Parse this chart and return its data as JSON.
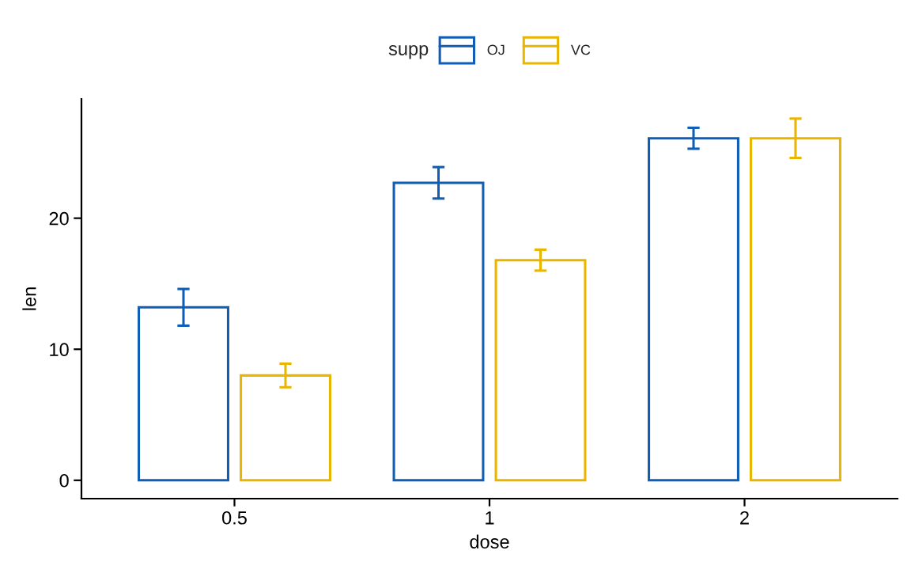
{
  "chart_data": {
    "type": "bar",
    "xlabel": "dose",
    "ylabel": "len",
    "legend_title": "supp",
    "categories": [
      "0.5",
      "1",
      "2"
    ],
    "series": [
      {
        "name": "OJ",
        "color": "#0F5DB5",
        "values": [
          13.2,
          22.7,
          26.1
        ],
        "errors": [
          1.4,
          1.2,
          0.8
        ]
      },
      {
        "name": "VC",
        "color": "#E8B500",
        "values": [
          8.0,
          16.8,
          26.1
        ],
        "errors": [
          0.9,
          0.8,
          1.5
        ]
      }
    ],
    "ylim": [
      -1.4,
      29.1
    ],
    "yticks": [
      0,
      10,
      20
    ],
    "legend": "top",
    "grid": false
  }
}
